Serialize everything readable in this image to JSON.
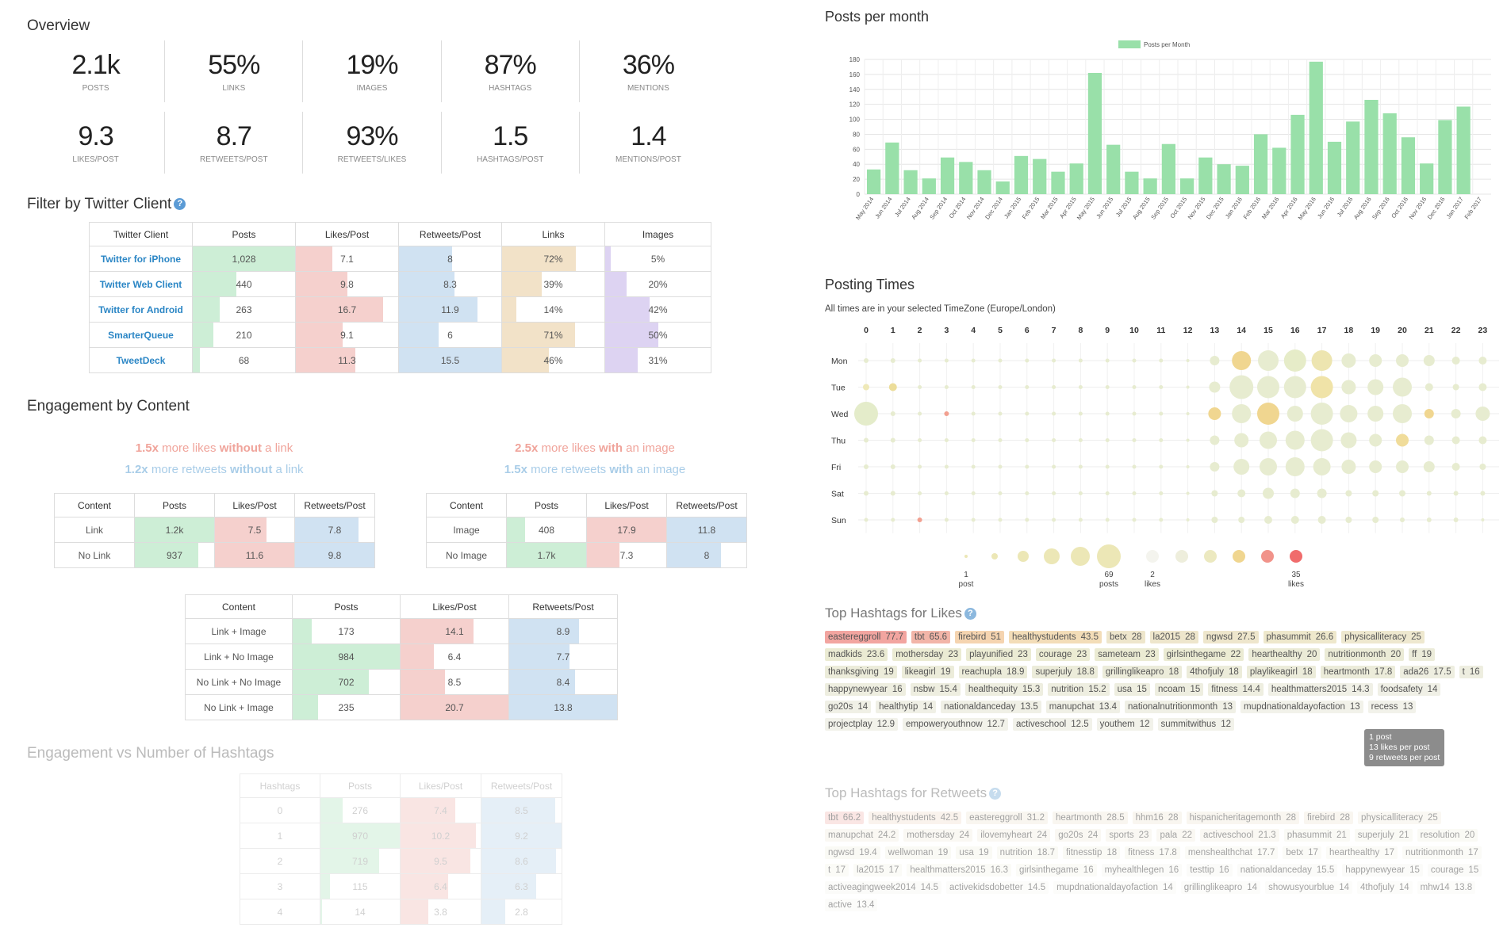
{
  "overview": {
    "title": "Overview",
    "row1": [
      {
        "v": "2.1k",
        "l": "POSTS"
      },
      {
        "v": "55%",
        "l": "LINKS"
      },
      {
        "v": "19%",
        "l": "IMAGES"
      },
      {
        "v": "87%",
        "l": "HASHTAGS"
      },
      {
        "v": "36%",
        "l": "MENTIONS"
      }
    ],
    "row2": [
      {
        "v": "9.3",
        "l": "LIKES/POST"
      },
      {
        "v": "8.7",
        "l": "RETWEETS/POST"
      },
      {
        "v": "93%",
        "l": "RETWEETS/LIKES"
      },
      {
        "v": "1.5",
        "l": "HASHTAGS/POST"
      },
      {
        "v": "1.4",
        "l": "MENTIONS/POST"
      }
    ]
  },
  "filter": {
    "title": "Filter by Twitter Client",
    "info": "?",
    "headers": [
      "Twitter Client",
      "Posts",
      "Likes/Post",
      "Retweets/Post",
      "Links",
      "Images"
    ],
    "rows": [
      {
        "client": "Twitter for iPhone",
        "posts": "1,028",
        "likes": "7.1",
        "retweets": "8",
        "links": "72%",
        "images": "5%",
        "f": [
          1.0,
          0.36,
          0.52,
          0.72,
          0.05
        ]
      },
      {
        "client": "Twitter Web Client",
        "posts": "440",
        "likes": "9.8",
        "retweets": "8.3",
        "links": "39%",
        "images": "20%",
        "f": [
          0.43,
          0.5,
          0.54,
          0.39,
          0.2
        ]
      },
      {
        "client": "Twitter for Android",
        "posts": "263",
        "likes": "16.7",
        "retweets": "11.9",
        "links": "14%",
        "images": "42%",
        "f": [
          0.26,
          0.85,
          0.77,
          0.14,
          0.42
        ]
      },
      {
        "client": "SmarterQueue",
        "posts": "210",
        "likes": "9.1",
        "retweets": "6",
        "links": "71%",
        "images": "50%",
        "f": [
          0.2,
          0.46,
          0.39,
          0.71,
          0.5
        ]
      },
      {
        "client": "TweetDeck",
        "posts": "68",
        "likes": "11.3",
        "retweets": "15.5",
        "links": "46%",
        "images": "31%",
        "f": [
          0.07,
          0.58,
          1.0,
          0.46,
          0.31
        ]
      }
    ]
  },
  "engagement": {
    "title": "Engagement by Content",
    "link_cmp": {
      "a_num": "1.5x",
      "a_mid": " more likes ",
      "a_key": "without",
      "a_end": " a link",
      "b_num": "1.2x",
      "b_mid": " more retweets ",
      "b_key": "without",
      "b_end": " a link"
    },
    "image_cmp": {
      "a_num": "2.5x",
      "a_mid": " more likes ",
      "a_key": "with",
      "a_end": " an image",
      "b_num": "1.5x",
      "b_mid": " more retweets ",
      "b_key": "with",
      "b_end": " an image"
    },
    "headers": [
      "Content",
      "Posts",
      "Likes/Post",
      "Retweets/Post"
    ],
    "link_table": [
      {
        "c": "Link",
        "p": "1.2k",
        "l": "7.5",
        "r": "7.8",
        "f": [
          1.0,
          0.65,
          0.8
        ]
      },
      {
        "c": "No Link",
        "p": "937",
        "l": "11.6",
        "r": "9.8",
        "f": [
          0.8,
          1.0,
          1.0
        ]
      }
    ],
    "image_table": [
      {
        "c": "Image",
        "p": "408",
        "l": "17.9",
        "r": "11.8",
        "f": [
          0.23,
          1.0,
          1.0
        ]
      },
      {
        "c": "No Image",
        "p": "1.7k",
        "l": "7.3",
        "r": "8",
        "f": [
          1.0,
          0.41,
          0.68
        ]
      }
    ],
    "combo_table": [
      {
        "c": "Link + Image",
        "p": "173",
        "l": "14.1",
        "r": "8.9",
        "f": [
          0.18,
          0.68,
          0.65
        ]
      },
      {
        "c": "Link + No Image",
        "p": "984",
        "l": "6.4",
        "r": "7.7",
        "f": [
          1.0,
          0.31,
          0.56
        ]
      },
      {
        "c": "No Link + No Image",
        "p": "702",
        "l": "8.5",
        "r": "8.4",
        "f": [
          0.71,
          0.41,
          0.61
        ]
      },
      {
        "c": "No Link + Image",
        "p": "235",
        "l": "20.7",
        "r": "13.8",
        "f": [
          0.24,
          1.0,
          1.0
        ]
      }
    ]
  },
  "hashtag_engagement": {
    "title": "Engagement vs Number of Hashtags",
    "headers": [
      "Hashtags",
      "Posts",
      "Likes/Post",
      "Retweets/Post"
    ],
    "rows": [
      {
        "h": "0",
        "p": "276",
        "l": "7.4",
        "r": "8.5",
        "f": [
          0.28,
          0.68,
          0.92
        ]
      },
      {
        "h": "1",
        "p": "970",
        "l": "10.2",
        "r": "9.2",
        "f": [
          1.0,
          0.94,
          1.0
        ]
      },
      {
        "h": "2",
        "p": "719",
        "l": "9.5",
        "r": "8.6",
        "f": [
          0.74,
          0.87,
          0.93
        ]
      },
      {
        "h": "3",
        "p": "115",
        "l": "6.4",
        "r": "6.3",
        "f": [
          0.12,
          0.59,
          0.68
        ]
      },
      {
        "h": "4",
        "p": "14",
        "l": "3.8",
        "r": "2.8",
        "f": [
          0.02,
          0.35,
          0.3
        ]
      }
    ]
  },
  "posts_per_month": {
    "title": "Posts per month"
  },
  "chart_data": {
    "type": "bar",
    "title": "",
    "legend": "Posts per Month",
    "legend_position": "top",
    "categories": [
      "May 2014",
      "Jun 2014",
      "Jul 2014",
      "Aug 2014",
      "Sep 2014",
      "Oct 2014",
      "Nov 2014",
      "Dec 2014",
      "Jan 2015",
      "Feb 2015",
      "Mar 2015",
      "Apr 2015",
      "May 2015",
      "Jun 2015",
      "Jul 2015",
      "Aug 2015",
      "Sep 2015",
      "Oct 2015",
      "Nov 2015",
      "Dec 2015",
      "Jan 2016",
      "Feb 2016",
      "Mar 2016",
      "Apr 2016",
      "May 2016",
      "Jun 2016",
      "Jul 2016",
      "Aug 2016",
      "Sep 2016",
      "Oct 2016",
      "Nov 2016",
      "Dec 2016",
      "Jan 2017",
      "Feb 2017"
    ],
    "values": [
      33,
      69,
      32,
      21,
      49,
      43,
      32,
      17,
      51,
      47,
      30,
      41,
      162,
      66,
      30,
      21,
      67,
      21,
      49,
      40,
      38,
      80,
      62,
      106,
      177,
      70,
      97,
      126,
      108,
      76,
      41,
      99,
      117,
      0
    ],
    "yticks": [
      0,
      20,
      40,
      60,
      80,
      100,
      120,
      140,
      160,
      180
    ],
    "ylim": [
      0,
      180
    ],
    "grid": true,
    "color": "#99e0a9"
  },
  "posting_times": {
    "title": "Posting Times",
    "subtitle": "All times are in your selected TimeZone (Europe/London)",
    "hours": [
      "0",
      "1",
      "2",
      "3",
      "4",
      "5",
      "6",
      "7",
      "8",
      "9",
      "10",
      "11",
      "12",
      "13",
      "14",
      "15",
      "16",
      "17",
      "18",
      "19",
      "20",
      "21",
      "22",
      "23"
    ],
    "days": [
      "Mon",
      "Tue",
      "Wed",
      "Thu",
      "Fri",
      "Sat",
      "Sun"
    ],
    "legend": {
      "posts_min": "1",
      "posts_min_label": "post",
      "posts_max": "69",
      "posts_max_label": "posts",
      "likes_min": "2",
      "likes_min_label": "likes",
      "likes_max": "35",
      "likes_max_label": "likes"
    }
  },
  "top_likes": {
    "title": "Top Hashtags for Likes",
    "info": "?",
    "tags": [
      [
        "eastereggroll",
        "77.7",
        "#f2a5a0"
      ],
      [
        "tbt",
        "65.6",
        "#f2b5a8"
      ],
      [
        "firebird",
        "51",
        "#f5d4b0"
      ],
      [
        "healthystudents",
        "43.5",
        "#f3ddb8"
      ],
      [
        "betx",
        "28",
        "#eee6cc"
      ],
      [
        "la2015",
        "28",
        "#eee6cc"
      ],
      [
        "ngwsd",
        "27.5",
        "#eee6cc"
      ],
      [
        "phasummit",
        "26.6",
        "#eee8cc"
      ],
      [
        "physicalliteracy",
        "25",
        "#eee8cf"
      ],
      [
        "madkids",
        "23.6",
        "#ebebd3"
      ],
      [
        "mothersday",
        "23",
        "#ebebd3"
      ],
      [
        "playunified",
        "23",
        "#ebebd3"
      ],
      [
        "courage",
        "23",
        "#ebebd3"
      ],
      [
        "sameteam",
        "23",
        "#ebebd3"
      ],
      [
        "girlsinthegame",
        "22",
        "#ebebd3"
      ],
      [
        "hearthealthy",
        "20",
        "#ebebd6"
      ],
      [
        "nutritionmonth",
        "20",
        "#ebebd6"
      ],
      [
        "ff",
        "19",
        "#ececda"
      ],
      [
        "thanksgiving",
        "19",
        "#ececda"
      ],
      [
        "likeagirl",
        "19",
        "#ececda"
      ],
      [
        "reachupla",
        "18.9",
        "#ececda"
      ],
      [
        "superjuly",
        "18.8",
        "#ececda"
      ],
      [
        "grillinglikeapro",
        "18",
        "#ececda"
      ],
      [
        "4thofjuly",
        "18",
        "#ececda"
      ],
      [
        "playlikeagirl",
        "18",
        "#ececda"
      ],
      [
        "heartmonth",
        "17.8",
        "#ececda"
      ],
      [
        "ada26",
        "17.5",
        "#eeeee0"
      ],
      [
        "t",
        "16",
        "#eeeee0"
      ],
      [
        "happynewyear",
        "16",
        "#eeeee0"
      ],
      [
        "nsbw",
        "15.4",
        "#eeeee0"
      ],
      [
        "healthequity",
        "15.3",
        "#eeeee0"
      ],
      [
        "nutrition",
        "15.2",
        "#eeeee0"
      ],
      [
        "usa",
        "15",
        "#eeeee0"
      ],
      [
        "ncoam",
        "15",
        "#eeeee0"
      ],
      [
        "fitness",
        "14.4",
        "#eeeee0"
      ],
      [
        "healthmatters2015",
        "14.3",
        "#f0f0e6"
      ],
      [
        "foodsafety",
        "14",
        "#f0f0e6"
      ],
      [
        "go20s",
        "14",
        "#f0f0e6"
      ],
      [
        "healthytip",
        "14",
        "#f0f0e6"
      ],
      [
        "nationaldanceday",
        "13.5",
        "#f0f0e6"
      ],
      [
        "manupchat",
        "13.4",
        "#f0f0e6"
      ],
      [
        "nationalnutritionmonth",
        "13",
        "#f0f0e6"
      ],
      [
        "mupdnationaldayofaction",
        "13",
        "#f2f2ea"
      ],
      [
        "recess",
        "13",
        "#f2f2ea"
      ],
      [
        "projectplay",
        "12.9",
        "#f2f2ea"
      ],
      [
        "empoweryouthnow",
        "12.7",
        "#f2f2ea"
      ],
      [
        "activeschool",
        "12.5",
        "#f2f2ea"
      ],
      [
        "youthem",
        "12",
        "#f2f2ea"
      ],
      [
        "summitwithus",
        "12",
        "#f2f2ea"
      ]
    ]
  },
  "tooltip": {
    "l1": "1 post",
    "l2": "13 likes per post",
    "l3": "9 retweets per post"
  },
  "top_retweets": {
    "title": "Top Hashtags for Retweets",
    "info": "?",
    "tags": [
      [
        "tbt",
        "66.2",
        "#f7d3cf"
      ],
      [
        "healthystudents",
        "42.5",
        "#f7ebe0"
      ],
      [
        "eastereggroll",
        "31.2",
        "#f5f0e5"
      ],
      [
        "heartmonth",
        "28.5",
        "#f5f0e5"
      ],
      [
        "hhm16",
        "28",
        "#f5f0e5"
      ],
      [
        "hispanicheritagemonth",
        "28",
        "#f5f0e5"
      ],
      [
        "firebird",
        "28",
        "#f5f0e5"
      ],
      [
        "physicalliteracy",
        "25",
        "#f6f4ea"
      ],
      [
        "manupchat",
        "24.2",
        "#f6f4ea"
      ],
      [
        "mothersday",
        "24",
        "#f6f4ea"
      ],
      [
        "ilovemyheart",
        "24",
        "#f6f4ea"
      ],
      [
        "go20s",
        "24",
        "#f6f4ea"
      ],
      [
        "sports",
        "23",
        "#f6f4ea"
      ],
      [
        "pala",
        "22",
        "#f6f4ea"
      ],
      [
        "activeschool",
        "21.3",
        "#f6f4ea"
      ],
      [
        "phasummit",
        "21",
        "#f7f6ee"
      ],
      [
        "superjuly",
        "21",
        "#f7f6ee"
      ],
      [
        "resolution",
        "20",
        "#f7f6ee"
      ],
      [
        "ngwsd",
        "19.4",
        "#f7f6ee"
      ],
      [
        "wellwoman",
        "19",
        "#f7f6ee"
      ],
      [
        "usa",
        "19",
        "#f7f6ee"
      ],
      [
        "nutrition",
        "18.7",
        "#f7f6ee"
      ],
      [
        "fitnesstip",
        "18",
        "#f7f6ee"
      ],
      [
        "fitness",
        "17.8",
        "#f7f6ee"
      ],
      [
        "menshealthchat",
        "17.7",
        "#f8f8f2"
      ],
      [
        "betx",
        "17",
        "#f8f8f2"
      ],
      [
        "hearthealthy",
        "17",
        "#f8f8f2"
      ],
      [
        "nutritionmonth",
        "17",
        "#f8f8f2"
      ],
      [
        "t",
        "17",
        "#f8f8f2"
      ],
      [
        "la2015",
        "17",
        "#f8f8f2"
      ],
      [
        "healthmatters2015",
        "16.3",
        "#f8f8f2"
      ],
      [
        "girlsinthegame",
        "16",
        "#f8f8f2"
      ],
      [
        "myhealthlegen",
        "16",
        "#f9f9f5"
      ],
      [
        "testtip",
        "16",
        "#f9f9f5"
      ],
      [
        "nationaldanceday",
        "15.5",
        "#f9f9f5"
      ],
      [
        "happynewyear",
        "15",
        "#f9f9f5"
      ],
      [
        "courage",
        "15",
        "#f9f9f5"
      ],
      [
        "activeagingweek2014",
        "14.5",
        "#f9f9f5"
      ],
      [
        "activekidsdobetter",
        "14.5",
        "#fafaf7"
      ],
      [
        "mupdnationaldayofaction",
        "14",
        "#fafaf7"
      ],
      [
        "grillinglikeapro",
        "14",
        "#fafaf7"
      ],
      [
        "showusyourblue",
        "14",
        "#fafaf7"
      ],
      [
        "4thofjuly",
        "14",
        "#fafaf7"
      ],
      [
        "mhw14",
        "13.8",
        "#fafaf7"
      ],
      [
        "active",
        "13.4",
        "#fafaf7"
      ]
    ]
  },
  "colors": {
    "posts": "#cdeed6",
    "likes": "#f5d0cd",
    "retweets": "#d0e2f2",
    "links": "#f2e2c8",
    "images": "#ddd3f2",
    "accent": "#2b86c5",
    "like_text": "#f0a49b",
    "rt_text": "#a9cde8"
  }
}
